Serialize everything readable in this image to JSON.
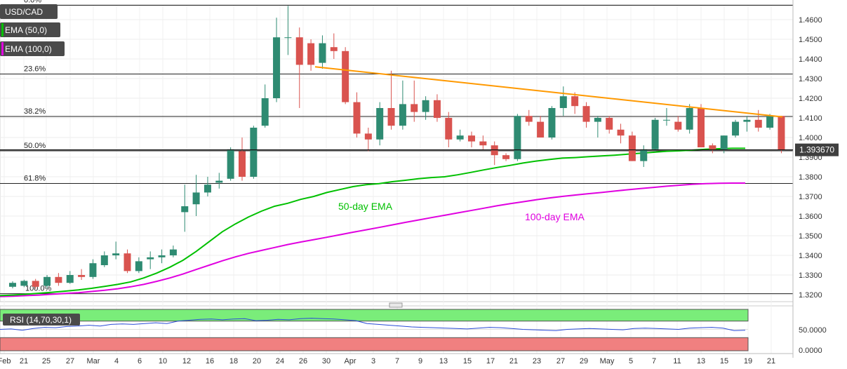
{
  "chart_data": {
    "type": "candlestick",
    "symbol": "USD/CAD",
    "indicators": [
      "EMA (50,0)",
      "EMA (100,0)"
    ],
    "last_price": "1.393670",
    "y_ticks": [
      "1.4600",
      "1.4500",
      "1.4400",
      "1.4300",
      "1.4200",
      "1.4100",
      "1.4000",
      "1.3900",
      "1.3800",
      "1.3700",
      "1.3600",
      "1.3500",
      "1.3400",
      "1.3300",
      "1.3200"
    ],
    "ylim": [
      1.318,
      1.468
    ],
    "x_ticks": [
      "Feb",
      "21",
      "25",
      "27",
      "Mar",
      "4",
      "6",
      "10",
      "12",
      "16",
      "18",
      "20",
      "24",
      "26",
      "30",
      "Apr",
      "3",
      "7",
      "9",
      "13",
      "15",
      "17",
      "21",
      "23",
      "27",
      "29",
      "May",
      "5",
      "7",
      "11",
      "13",
      "15",
      "19",
      "21"
    ],
    "fib_levels": [
      {
        "label": "0.0%",
        "value": 1.4673
      },
      {
        "label": "23.6%",
        "value": 1.4323
      },
      {
        "label": "38.2%",
        "value": 1.4107
      },
      {
        "label": "50.0%",
        "value": 1.3932
      },
      {
        "label": "61.8%",
        "value": 1.3766
      },
      {
        "label": "100.0%",
        "value": 1.3205
      }
    ],
    "annotations": [
      "50-day EMA",
      "100-day EMA"
    ],
    "candles": [
      {
        "date": "Feb 18",
        "o": 1.324,
        "h": 1.3268,
        "l": 1.3232,
        "c": 1.326
      },
      {
        "date": "Feb 19",
        "o": 1.3245,
        "h": 1.3276,
        "l": 1.3238,
        "c": 1.327
      },
      {
        "date": "Feb 20",
        "o": 1.327,
        "h": 1.328,
        "l": 1.323,
        "c": 1.324
      },
      {
        "date": "Feb 21",
        "o": 1.3245,
        "h": 1.33,
        "l": 1.3232,
        "c": 1.329
      },
      {
        "date": "Feb 24",
        "o": 1.329,
        "h": 1.331,
        "l": 1.3245,
        "c": 1.326
      },
      {
        "date": "Feb 25",
        "o": 1.326,
        "h": 1.332,
        "l": 1.3255,
        "c": 1.33
      },
      {
        "date": "Feb 26",
        "o": 1.33,
        "h": 1.333,
        "l": 1.3275,
        "c": 1.329
      },
      {
        "date": "Feb 27",
        "o": 1.329,
        "h": 1.338,
        "l": 1.328,
        "c": 1.336
      },
      {
        "date": "Feb 28",
        "o": 1.335,
        "h": 1.342,
        "l": 1.334,
        "c": 1.34
      },
      {
        "date": "Mar 2",
        "o": 1.34,
        "h": 1.347,
        "l": 1.338,
        "c": 1.341
      },
      {
        "date": "Mar 3",
        "o": 1.341,
        "h": 1.343,
        "l": 1.331,
        "c": 1.332
      },
      {
        "date": "Mar 4",
        "o": 1.332,
        "h": 1.339,
        "l": 1.331,
        "c": 1.337
      },
      {
        "date": "Mar 5",
        "o": 1.338,
        "h": 1.342,
        "l": 1.333,
        "c": 1.339
      },
      {
        "date": "Mar 6",
        "o": 1.339,
        "h": 1.343,
        "l": 1.336,
        "c": 1.34
      },
      {
        "date": "Mar 9",
        "o": 1.34,
        "h": 1.345,
        "l": 1.339,
        "c": 1.343
      },
      {
        "date": "Mar 10",
        "o": 1.362,
        "h": 1.376,
        "l": 1.352,
        "c": 1.365
      },
      {
        "date": "Mar 11",
        "o": 1.366,
        "h": 1.381,
        "l": 1.36,
        "c": 1.372
      },
      {
        "date": "Mar 12",
        "o": 1.372,
        "h": 1.38,
        "l": 1.37,
        "c": 1.376
      },
      {
        "date": "Mar 13",
        "o": 1.377,
        "h": 1.382,
        "l": 1.374,
        "c": 1.378
      },
      {
        "date": "Mar 16",
        "o": 1.379,
        "h": 1.395,
        "l": 1.378,
        "c": 1.394
      },
      {
        "date": "Mar 17",
        "o": 1.393,
        "h": 1.4,
        "l": 1.378,
        "c": 1.38
      },
      {
        "date": "Mar 18",
        "o": 1.38,
        "h": 1.406,
        "l": 1.379,
        "c": 1.405
      },
      {
        "date": "Mar 19",
        "o": 1.406,
        "h": 1.427,
        "l": 1.405,
        "c": 1.42
      },
      {
        "date": "Mar 20",
        "o": 1.42,
        "h": 1.461,
        "l": 1.418,
        "c": 1.451
      },
      {
        "date": "Mar 21",
        "o": 1.451,
        "h": 1.467,
        "l": 1.442,
        "c": 1.451
      },
      {
        "date": "Mar 23",
        "o": 1.451,
        "h": 1.456,
        "l": 1.415,
        "c": 1.437
      },
      {
        "date": "Mar 24",
        "o": 1.448,
        "h": 1.45,
        "l": 1.434,
        "c": 1.437
      },
      {
        "date": "Mar 25",
        "o": 1.438,
        "h": 1.452,
        "l": 1.435,
        "c": 1.448
      },
      {
        "date": "Mar 26",
        "o": 1.446,
        "h": 1.453,
        "l": 1.44,
        "c": 1.444
      },
      {
        "date": "Mar 27",
        "o": 1.444,
        "h": 1.446,
        "l": 1.417,
        "c": 1.418
      },
      {
        "date": "Mar 30",
        "o": 1.418,
        "h": 1.423,
        "l": 1.4,
        "c": 1.402
      },
      {
        "date": "Mar 31",
        "o": 1.402,
        "h": 1.405,
        "l": 1.393,
        "c": 1.399
      },
      {
        "date": "Apr 1",
        "o": 1.399,
        "h": 1.418,
        "l": 1.396,
        "c": 1.415
      },
      {
        "date": "Apr 2",
        "o": 1.415,
        "h": 1.434,
        "l": 1.404,
        "c": 1.406
      },
      {
        "date": "Apr 3",
        "o": 1.406,
        "h": 1.429,
        "l": 1.404,
        "c": 1.417
      },
      {
        "date": "Apr 6",
        "o": 1.417,
        "h": 1.429,
        "l": 1.408,
        "c": 1.413
      },
      {
        "date": "Apr 7",
        "o": 1.413,
        "h": 1.421,
        "l": 1.409,
        "c": 1.419
      },
      {
        "date": "Apr 8",
        "o": 1.419,
        "h": 1.422,
        "l": 1.408,
        "c": 1.41
      },
      {
        "date": "Apr 9",
        "o": 1.41,
        "h": 1.413,
        "l": 1.395,
        "c": 1.399
      },
      {
        "date": "Apr 10",
        "o": 1.399,
        "h": 1.404,
        "l": 1.398,
        "c": 1.401
      },
      {
        "date": "Apr 13",
        "o": 1.401,
        "h": 1.403,
        "l": 1.395,
        "c": 1.398
      },
      {
        "date": "Apr 14",
        "o": 1.398,
        "h": 1.401,
        "l": 1.394,
        "c": 1.396
      },
      {
        "date": "Apr 15",
        "o": 1.396,
        "h": 1.398,
        "l": 1.386,
        "c": 1.391
      },
      {
        "date": "Apr 16",
        "o": 1.391,
        "h": 1.392,
        "l": 1.388,
        "c": 1.389
      },
      {
        "date": "Apr 17",
        "o": 1.389,
        "h": 1.412,
        "l": 1.388,
        "c": 1.411
      },
      {
        "date": "Apr 20",
        "o": 1.411,
        "h": 1.414,
        "l": 1.406,
        "c": 1.408
      },
      {
        "date": "Apr 21",
        "o": 1.408,
        "h": 1.411,
        "l": 1.4,
        "c": 1.4
      },
      {
        "date": "Apr 22",
        "o": 1.4,
        "h": 1.416,
        "l": 1.399,
        "c": 1.415
      },
      {
        "date": "Apr 23",
        "o": 1.415,
        "h": 1.426,
        "l": 1.411,
        "c": 1.421
      },
      {
        "date": "Apr 24",
        "o": 1.421,
        "h": 1.423,
        "l": 1.412,
        "c": 1.416
      },
      {
        "date": "Apr 27",
        "o": 1.416,
        "h": 1.418,
        "l": 1.405,
        "c": 1.408
      },
      {
        "date": "Apr 28",
        "o": 1.408,
        "h": 1.411,
        "l": 1.4,
        "c": 1.41
      },
      {
        "date": "Apr 29",
        "o": 1.41,
        "h": 1.411,
        "l": 1.402,
        "c": 1.404
      },
      {
        "date": "Apr 30",
        "o": 1.404,
        "h": 1.407,
        "l": 1.397,
        "c": 1.401
      },
      {
        "date": "May 1",
        "o": 1.401,
        "h": 1.403,
        "l": 1.388,
        "c": 1.388
      },
      {
        "date": "May 4",
        "o": 1.388,
        "h": 1.396,
        "l": 1.385,
        "c": 1.394
      },
      {
        "date": "May 5",
        "o": 1.394,
        "h": 1.41,
        "l": 1.393,
        "c": 1.409
      },
      {
        "date": "May 6",
        "o": 1.409,
        "h": 1.415,
        "l": 1.406,
        "c": 1.409
      },
      {
        "date": "May 7",
        "o": 1.408,
        "h": 1.411,
        "l": 1.403,
        "c": 1.404
      },
      {
        "date": "May 8",
        "o": 1.404,
        "h": 1.417,
        "l": 1.402,
        "c": 1.415
      },
      {
        "date": "May 11",
        "o": 1.415,
        "h": 1.417,
        "l": 1.395,
        "c": 1.395
      },
      {
        "date": "May 12",
        "o": 1.396,
        "h": 1.397,
        "l": 1.392,
        "c": 1.394
      },
      {
        "date": "May 13",
        "o": 1.394,
        "h": 1.401,
        "l": 1.392,
        "c": 1.401
      },
      {
        "date": "May 14",
        "o": 1.401,
        "h": 1.409,
        "l": 1.4,
        "c": 1.408
      },
      {
        "date": "May 15",
        "o": 1.408,
        "h": 1.411,
        "l": 1.403,
        "c": 1.409
      },
      {
        "date": "May 18",
        "o": 1.409,
        "h": 1.414,
        "l": 1.403,
        "c": 1.405
      },
      {
        "date": "May 19",
        "o": 1.405,
        "h": 1.412,
        "l": 1.404,
        "c": 1.411
      },
      {
        "date": "May 20",
        "o": 1.411,
        "h": 1.411,
        "l": 1.392,
        "c": 1.3937
      }
    ],
    "ema50": [
      1.3195,
      1.3198,
      1.3202,
      1.3207,
      1.3212,
      1.3218,
      1.3224,
      1.3232,
      1.3242,
      1.3252,
      1.3265,
      1.3285,
      1.331,
      1.334,
      1.3375,
      1.342,
      1.347,
      1.352,
      1.356,
      1.3595,
      1.3625,
      1.365,
      1.3665,
      1.3685,
      1.37,
      1.372,
      1.3735,
      1.375,
      1.376,
      1.3765,
      1.3775,
      1.3782,
      1.379,
      1.3796,
      1.38,
      1.381,
      1.3822,
      1.3835,
      1.3847,
      1.3858,
      1.387,
      1.388,
      1.3888,
      1.3895,
      1.3898,
      1.3902,
      1.3906,
      1.391,
      1.3915,
      1.392,
      1.3925,
      1.393,
      1.3932,
      1.3936,
      1.394,
      1.3943,
      1.3945,
      1.3945
    ],
    "ema100": [
      1.319,
      1.3192,
      1.3195,
      1.3198,
      1.3202,
      1.3206,
      1.321,
      1.3216,
      1.3222,
      1.323,
      1.324,
      1.3252,
      1.3268,
      1.3285,
      1.3305,
      1.3328,
      1.335,
      1.3372,
      1.3392,
      1.341,
      1.3425,
      1.344,
      1.3455,
      1.3468,
      1.348,
      1.3492,
      1.3505,
      1.3518,
      1.353,
      1.3542,
      1.3555,
      1.3568,
      1.358,
      1.3592,
      1.3604,
      1.3616,
      1.3628,
      1.364,
      1.3652,
      1.3663,
      1.3673,
      1.3683,
      1.3692,
      1.37,
      1.3707,
      1.3714,
      1.372,
      1.3727,
      1.3734,
      1.374,
      1.3746,
      1.3752,
      1.3757,
      1.3762,
      1.3765,
      1.3767,
      1.3768,
      1.3768
    ],
    "trendline": [
      {
        "date": "Mar 30",
        "value": 1.437
      },
      {
        "date": "May 21",
        "value": 1.41
      }
    ],
    "rsi": {
      "label": "RSI (14,70,30,1)",
      "y_ticks": [
        "50.0000",
        "0.0000"
      ],
      "overbought": 70,
      "oversold": 30,
      "values": [
        50,
        51,
        48,
        52,
        55,
        54,
        57,
        58,
        60,
        58,
        62,
        63,
        62,
        64,
        66,
        64,
        70,
        72,
        74,
        75,
        73,
        75,
        76,
        71,
        72,
        74,
        73,
        76,
        77,
        76,
        75,
        73,
        71,
        64,
        62,
        60,
        58,
        56,
        55,
        54,
        53,
        52,
        51,
        53,
        55,
        54,
        52,
        50,
        49,
        48,
        47,
        50,
        51,
        52,
        51,
        50,
        49,
        52,
        53,
        52,
        51,
        50,
        53,
        54,
        55,
        53,
        47,
        48
      ]
    },
    "colors": {
      "up": "#2e8b72",
      "down": "#d9534f",
      "ema50": "#00c000",
      "ema100": "#e000e0",
      "trendline": "#ff9900",
      "rsi_line": "#2a4bd7",
      "overbought_zone": "#7aed7a",
      "oversold_zone": "#f08080",
      "label_bg": "#4a4a4a"
    }
  }
}
